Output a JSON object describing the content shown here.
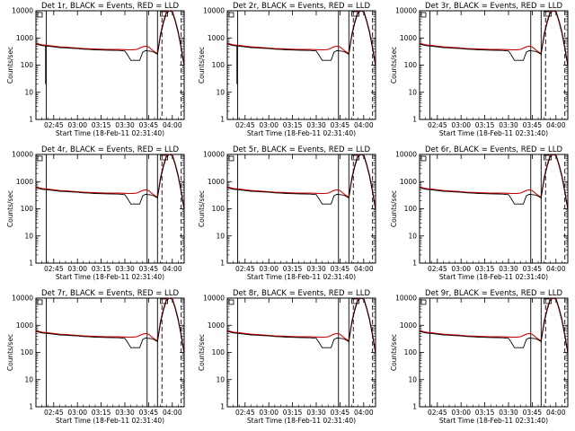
{
  "chart_data": [
    {
      "type": "line",
      "title": "Det 1r, BLACK = Events, RED = LLD",
      "xlabel": "Start Time (18-Feb-11 02:31:40)",
      "ylabel": "Counts/sec",
      "yscale": "log",
      "ylim": [
        1,
        10000
      ],
      "xlim": [
        0,
        100
      ],
      "x_tick_labels": [
        "02:45",
        "03:00",
        "03:15",
        "03:30",
        "03:45",
        "04:00"
      ],
      "y_tick_labels": [
        "1",
        "10",
        "100",
        "1000",
        "10000"
      ],
      "series": [
        {
          "name": "Events",
          "color": "#000000"
        },
        {
          "name": "LLD",
          "color": "#cc0000"
        }
      ]
    },
    {
      "type": "line",
      "title": "Det 2r, BLACK = Events, RED = LLD",
      "xlabel": "Start Time (18-Feb-11 02:31:40)",
      "ylabel": "Counts/sec",
      "yscale": "log",
      "ylim": [
        1,
        10000
      ],
      "xlim": [
        0,
        100
      ],
      "x_tick_labels": [
        "02:45",
        "03:00",
        "03:15",
        "03:30",
        "03:45",
        "04:00"
      ],
      "y_tick_labels": [
        "1",
        "10",
        "100",
        "1000",
        "10000"
      ],
      "series": [
        {
          "name": "Events",
          "color": "#000000"
        },
        {
          "name": "LLD",
          "color": "#cc0000"
        }
      ]
    },
    {
      "type": "line",
      "title": "Det 3r, BLACK = Events, RED = LLD",
      "xlabel": "Start Time (18-Feb-11 02:31:40)",
      "ylabel": "Counts/sec",
      "yscale": "log",
      "ylim": [
        1,
        10000
      ],
      "xlim": [
        0,
        100
      ],
      "x_tick_labels": [
        "02:45",
        "03:00",
        "03:15",
        "03:30",
        "03:45",
        "04:00"
      ],
      "y_tick_labels": [
        "1",
        "10",
        "100",
        "1000",
        "10000"
      ],
      "series": [
        {
          "name": "Events",
          "color": "#000000"
        },
        {
          "name": "LLD",
          "color": "#cc0000"
        }
      ]
    },
    {
      "type": "line",
      "title": "Det 4r, BLACK = Events, RED = LLD",
      "xlabel": "Start Time (18-Feb-11 02:31:40)",
      "ylabel": "Counts/sec",
      "yscale": "log",
      "ylim": [
        1,
        10000
      ],
      "xlim": [
        0,
        100
      ],
      "x_tick_labels": [
        "02:45",
        "03:00",
        "03:15",
        "03:30",
        "03:45",
        "04:00"
      ],
      "y_tick_labels": [
        "1",
        "10",
        "100",
        "1000",
        "10000"
      ],
      "series": [
        {
          "name": "Events",
          "color": "#000000"
        },
        {
          "name": "LLD",
          "color": "#cc0000"
        }
      ]
    },
    {
      "type": "line",
      "title": "Det 5r, BLACK = Events, RED = LLD",
      "xlabel": "Start Time (18-Feb-11 02:31:40)",
      "ylabel": "Counts/sec",
      "yscale": "log",
      "ylim": [
        1,
        10000
      ],
      "xlim": [
        0,
        100
      ],
      "x_tick_labels": [
        "02:45",
        "03:00",
        "03:15",
        "03:30",
        "03:45",
        "04:00"
      ],
      "y_tick_labels": [
        "1",
        "10",
        "100",
        "1000",
        "10000"
      ],
      "series": [
        {
          "name": "Events",
          "color": "#000000"
        },
        {
          "name": "LLD",
          "color": "#cc0000"
        }
      ]
    },
    {
      "type": "line",
      "title": "Det 6r, BLACK = Events, RED = LLD",
      "xlabel": "Start Time (18-Feb-11 02:31:40)",
      "ylabel": "Counts/sec",
      "yscale": "log",
      "ylim": [
        1,
        10000
      ],
      "xlim": [
        0,
        100
      ],
      "x_tick_labels": [
        "02:45",
        "03:00",
        "03:15",
        "03:30",
        "03:45",
        "04:00"
      ],
      "y_tick_labels": [
        "1",
        "10",
        "100",
        "1000",
        "10000"
      ],
      "series": [
        {
          "name": "Events",
          "color": "#000000"
        },
        {
          "name": "LLD",
          "color": "#cc0000"
        }
      ]
    },
    {
      "type": "line",
      "title": "Det 7r, BLACK = Events, RED = LLD",
      "xlabel": "Start Time (18-Feb-11 02:31:40)",
      "ylabel": "Counts/sec",
      "yscale": "log",
      "ylim": [
        1,
        10000
      ],
      "xlim": [
        0,
        100
      ],
      "x_tick_labels": [
        "02:45",
        "03:00",
        "03:15",
        "03:30",
        "03:45",
        "04:00"
      ],
      "y_tick_labels": [
        "1",
        "10",
        "100",
        "1000",
        "10000"
      ],
      "series": [
        {
          "name": "Events",
          "color": "#000000"
        },
        {
          "name": "LLD",
          "color": "#cc0000"
        }
      ]
    },
    {
      "type": "line",
      "title": "Det 8r, BLACK = Events, RED = LLD",
      "xlabel": "Start Time (18-Feb-11 02:31:40)",
      "ylabel": "Counts/sec",
      "yscale": "log",
      "ylim": [
        1,
        10000
      ],
      "xlim": [
        0,
        100
      ],
      "x_tick_labels": [
        "02:45",
        "03:00",
        "03:15",
        "03:30",
        "03:45",
        "04:00"
      ],
      "y_tick_labels": [
        "1",
        "10",
        "100",
        "1000",
        "10000"
      ],
      "series": [
        {
          "name": "Events",
          "color": "#000000"
        },
        {
          "name": "LLD",
          "color": "#cc0000"
        }
      ]
    },
    {
      "type": "line",
      "title": "Det 9r, BLACK = Events, RED = LLD",
      "xlabel": "Start Time (18-Feb-11 02:31:40)",
      "ylabel": "Counts/sec",
      "yscale": "log",
      "ylim": [
        1,
        10000
      ],
      "xlim": [
        0,
        100
      ],
      "x_tick_labels": [
        "02:45",
        "03:00",
        "03:15",
        "03:30",
        "03:45",
        "04:00"
      ],
      "y_tick_labels": [
        "1",
        "10",
        "100",
        "1000",
        "10000"
      ],
      "series": [
        {
          "name": "Events",
          "color": "#000000"
        },
        {
          "name": "LLD",
          "color": "#cc0000"
        }
      ]
    }
  ],
  "series_values": {
    "x": [
      0,
      4,
      8,
      12,
      16,
      20,
      24,
      28,
      32,
      36,
      40,
      44,
      48,
      52,
      56,
      60,
      62,
      64,
      66,
      68,
      70,
      72,
      74,
      76,
      78,
      80,
      82,
      84,
      86,
      88,
      90,
      92,
      94,
      96,
      98,
      100
    ],
    "events": [
      600,
      520,
      500,
      470,
      440,
      430,
      415,
      405,
      385,
      375,
      365,
      360,
      355,
      350,
      345,
      330,
      230,
      150,
      150,
      150,
      150,
      300,
      340,
      330,
      320,
      290,
      250,
      1200,
      3500,
      8000,
      10000,
      9000,
      4000,
      1500,
      400,
      90
    ],
    "lld": [
      640,
      560,
      530,
      500,
      470,
      455,
      440,
      425,
      410,
      400,
      390,
      385,
      380,
      378,
      375,
      370,
      365,
      365,
      368,
      380,
      420,
      470,
      500,
      470,
      380,
      310,
      270,
      1400,
      4000,
      9000,
      11000,
      10000,
      4500,
      1700,
      450,
      100
    ]
  },
  "markers": {
    "vertical_solid": [
      7,
      75,
      82
    ],
    "vertical_dashed": [
      85,
      98
    ],
    "dropout_x": 6.5,
    "dropout_min": 20
  }
}
